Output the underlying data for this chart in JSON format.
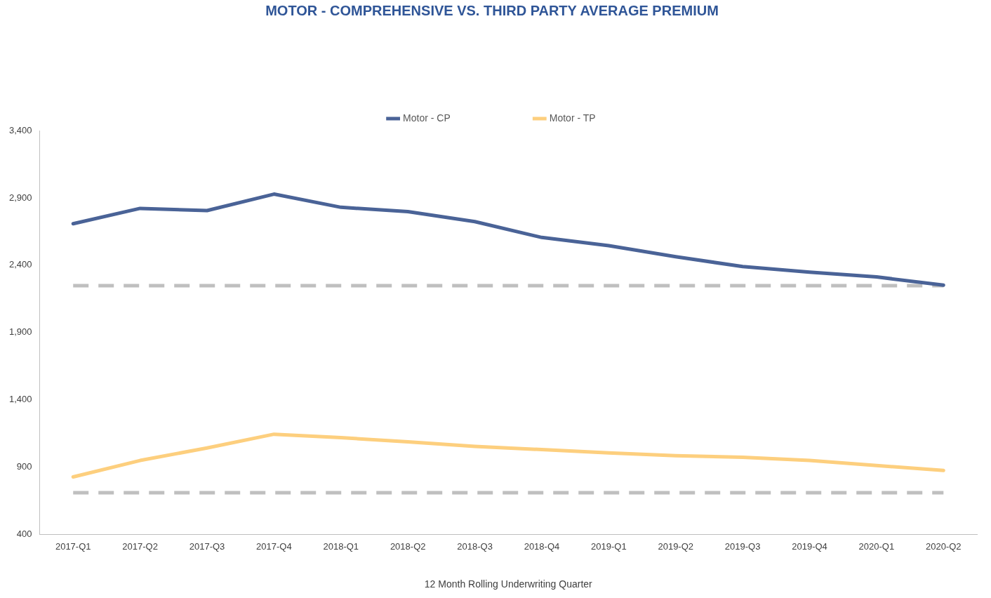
{
  "chart_data": {
    "type": "line",
    "title": "MOTOR - COMPREHENSIVE VS. THIRD PARTY AVERAGE PREMIUM",
    "xlabel": "12 Month Rolling Underwriting Quarter",
    "categories": [
      "2017-Q1",
      "2017-Q2",
      "2017-Q3",
      "2017-Q4",
      "2018-Q1",
      "2018-Q2",
      "2018-Q3",
      "2018-Q4",
      "2019-Q1",
      "2019-Q2",
      "2019-Q3",
      "2019-Q4",
      "2020-Q1",
      "2020-Q2"
    ],
    "series": [
      {
        "name": "Motor - CP",
        "color": "#4a6397",
        "values": [
          2708,
          2822,
          2806,
          2928,
          2830,
          2798,
          2724,
          2606,
          2545,
          2463,
          2390,
          2349,
          2313,
          2252
        ]
      },
      {
        "name": "Motor - TP",
        "color": "#fdcf7e",
        "values": [
          828,
          950,
          1043,
          1145,
          1120,
          1088,
          1055,
          1031,
          1006,
          986,
          974,
          950,
          913,
          876
        ]
      }
    ],
    "ylim": [
      400,
      3400
    ],
    "yticks": [
      {
        "value": 400,
        "label": "400"
      },
      {
        "value": 900,
        "label": "900"
      },
      {
        "value": 1400,
        "label": "1,400"
      },
      {
        "value": 1900,
        "label": "1,900"
      },
      {
        "value": 2400,
        "label": "2,400"
      },
      {
        "value": 2900,
        "label": "2,900"
      },
      {
        "value": 3400,
        "label": "3,400"
      }
    ],
    "ref_lines": [
      {
        "axis": "y",
        "value": 2248,
        "color": "#bfbfbf",
        "line_style": "dashed"
      },
      {
        "axis": "y",
        "value": 710,
        "color": "#bfbfbf",
        "line_style": "dashed"
      }
    ],
    "grid": false,
    "legend": "top",
    "marker": "none",
    "line_style": "solid"
  }
}
